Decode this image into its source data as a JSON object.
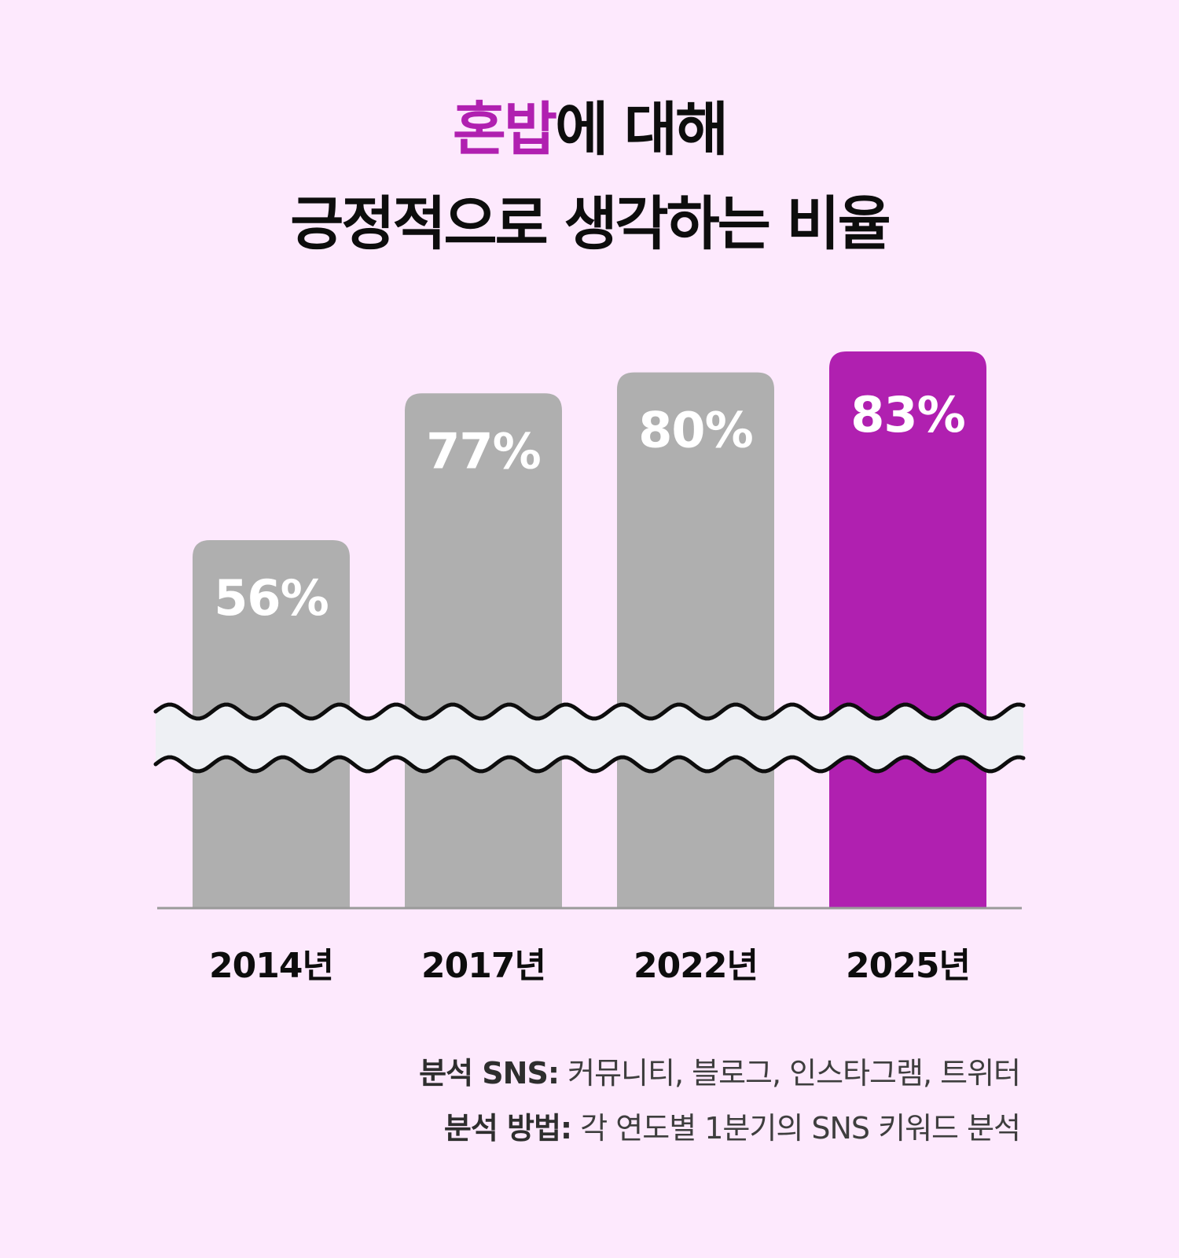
{
  "title": {
    "highlight": "혼밥",
    "line1_rest": "에 대해",
    "line2": "긍정적으로 생각하는 비율"
  },
  "colors": {
    "background": "#fde9fd",
    "accent": "#b020b0",
    "bar_default": "#afafaf",
    "break_band": "#eef0f4",
    "axis": "#9a9a9a"
  },
  "chart_data": {
    "type": "bar",
    "categories": [
      "2014년",
      "2017년",
      "2022년",
      "2025년"
    ],
    "values": [
      56,
      77,
      80,
      83
    ],
    "value_labels": [
      "56%",
      "77%",
      "80%",
      "83%"
    ],
    "highlight_index": 3,
    "y_axis_break": true,
    "gridlines": false,
    "legend": "none",
    "xlabel": "",
    "ylabel": ""
  },
  "footnotes": [
    {
      "key": "분석 SNS:",
      "value": "커뮤니티, 블로그, 인스타그램, 트위터"
    },
    {
      "key": "분석 방법:",
      "value": "각 연도별 1분기의 SNS 키워드 분석"
    }
  ]
}
